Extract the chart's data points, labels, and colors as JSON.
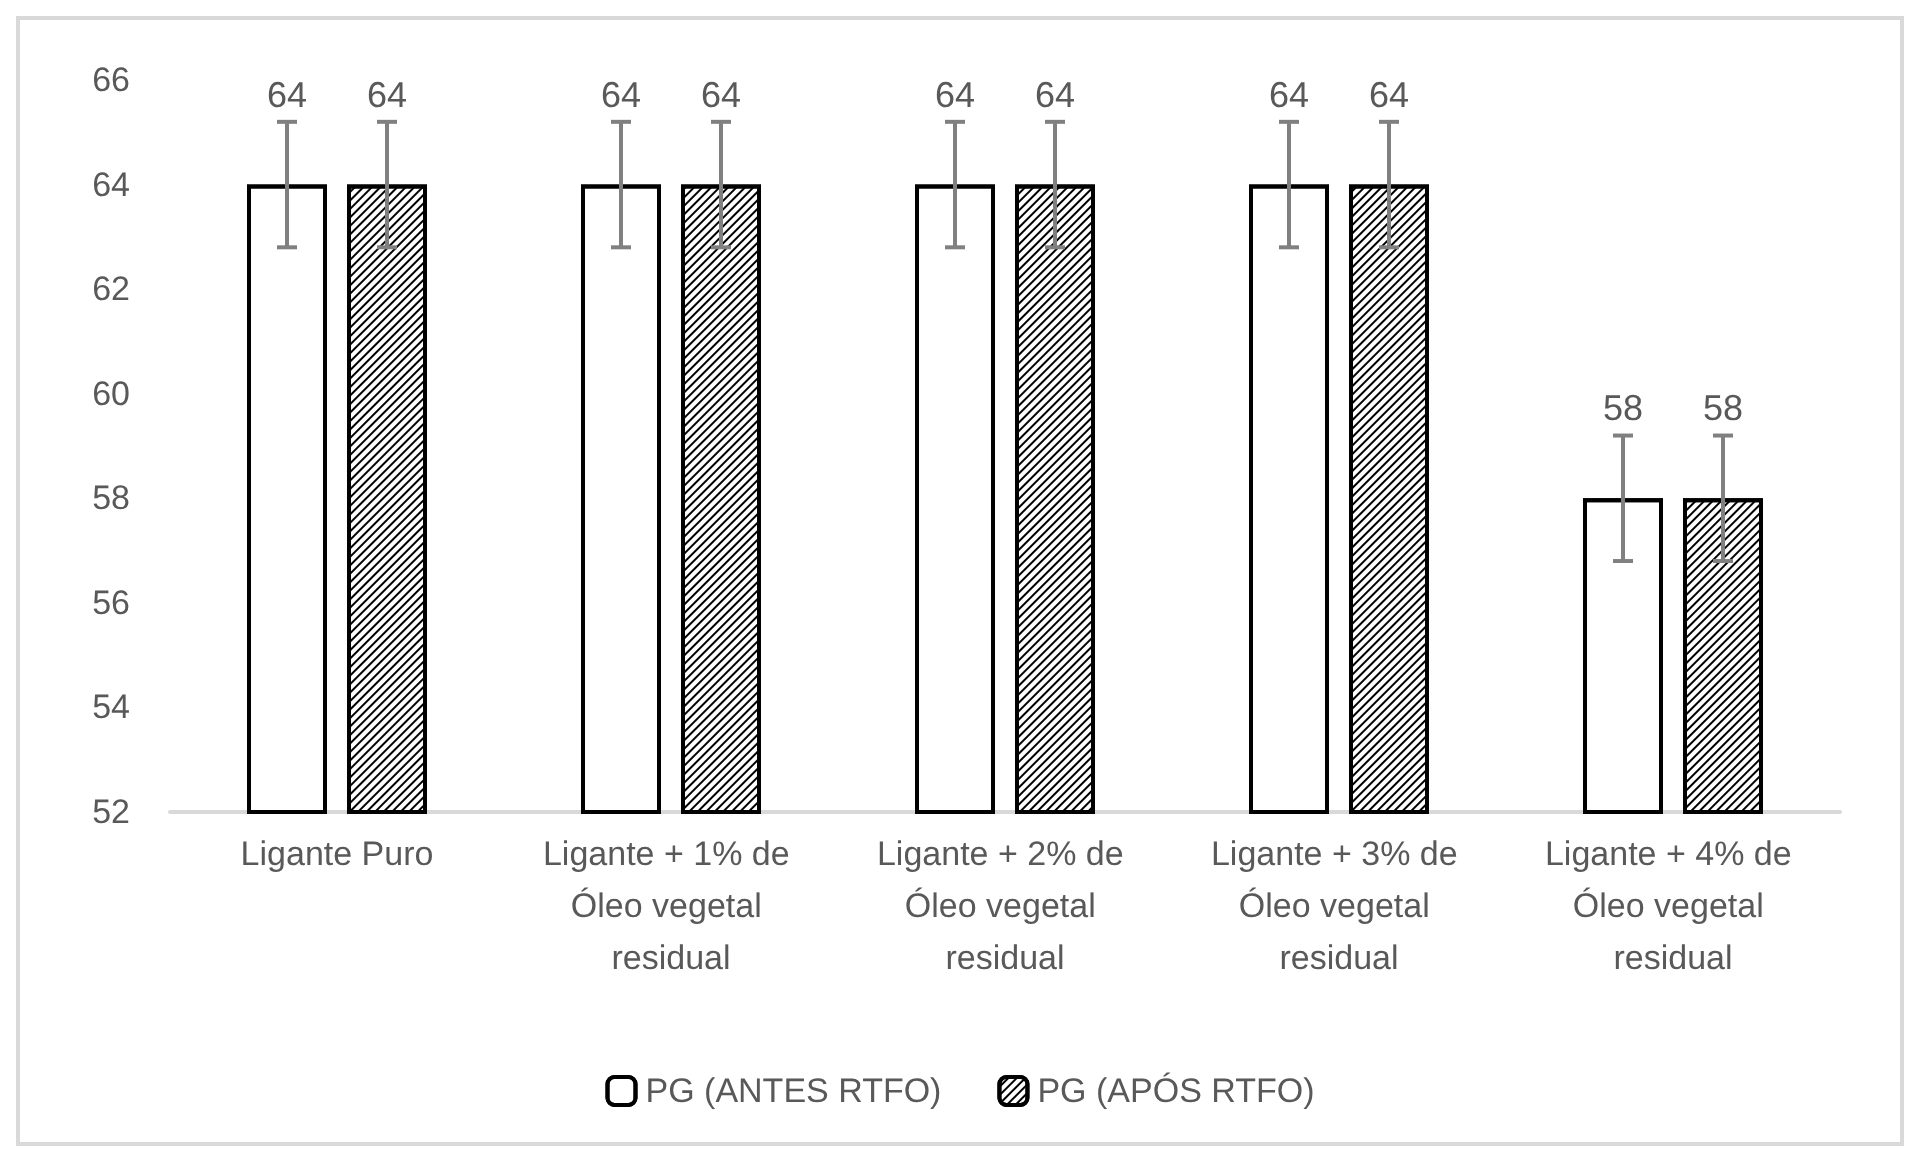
{
  "chart_data": {
    "type": "bar",
    "categories": [
      "Ligante Puro",
      "Ligante + 1% de Óleo vegetal residual",
      "Ligante + 2% de Óleo vegetal residual",
      "Ligante + 3% de Óleo vegetal residual",
      "Ligante + 4% de Óleo vegetal residual"
    ],
    "series": [
      {
        "name": "PG (ANTES RTFO)",
        "color": "#ffffff",
        "values": [
          64,
          64,
          64,
          64,
          58
        ],
        "errors": [
          1.2,
          1.2,
          1.2,
          1.2,
          1.2
        ]
      },
      {
        "name": "PG (APÓS RTFO)",
        "color": "#ffffff",
        "values": [
          64,
          64,
          64,
          64,
          58
        ],
        "errors": [
          1.2,
          1.2,
          1.2,
          1.2,
          1.2
        ]
      }
    ],
    "ylim": [
      52,
      66
    ],
    "yticks": [
      52,
      54,
      56,
      58,
      60,
      62,
      64,
      66
    ],
    "grid": false,
    "legend": "bottom",
    "data_labels": true
  }
}
